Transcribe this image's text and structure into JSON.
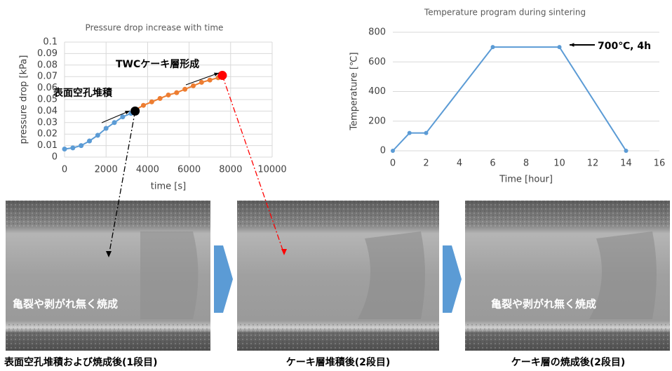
{
  "chart_data": [
    {
      "type": "line",
      "title": "Pressure drop increase with time",
      "x_label": "time [s]",
      "y_label": "pressure drop [kPa]",
      "xlim": [
        0,
        10000
      ],
      "xticks": [
        0,
        2000,
        4000,
        6000,
        8000,
        10000
      ],
      "ylim": [
        0,
        0.1
      ],
      "yticks": [
        0,
        0.01,
        0.02,
        0.03,
        0.04,
        0.05,
        0.06,
        0.07,
        0.08,
        0.09,
        0.1
      ],
      "grid": "both",
      "series": [
        {
          "color": "#5b9bd5",
          "x": [
            0,
            400,
            800,
            1200,
            1600,
            2000,
            2400,
            2800,
            3200,
            3400
          ],
          "values": [
            0.007,
            0.008,
            0.01,
            0.014,
            0.019,
            0.025,
            0.03,
            0.035,
            0.038,
            0.04
          ]
        },
        {
          "color": "#ed7d31",
          "x": [
            3400,
            3800,
            4200,
            4600,
            5000,
            5400,
            5800,
            6200,
            6600,
            7000,
            7400,
            7600
          ],
          "values": [
            0.041,
            0.045,
            0.048,
            0.051,
            0.054,
            0.056,
            0.059,
            0.062,
            0.065,
            0.067,
            0.069,
            0.07
          ]
        }
      ],
      "highlights": [
        {
          "color": "#000000",
          "x": 3400,
          "value": 0.04
        },
        {
          "color": "#ff0000",
          "x": 7600,
          "value": 0.071
        }
      ],
      "annotations": [
        "表面空孔堆積",
        "TWCケーキ層形成"
      ]
    },
    {
      "type": "line",
      "title": "Temperature program during sintering",
      "x_label": "Time [hour]",
      "y_label": "Temperature [℃]",
      "xlim": [
        0,
        16
      ],
      "xticks": [
        0,
        2,
        4,
        6,
        8,
        10,
        12,
        14,
        16
      ],
      "ylim": [
        0,
        800
      ],
      "yticks": [
        0,
        200,
        400,
        600,
        800
      ],
      "grid": "y",
      "series": [
        {
          "color": "#5b9bd5",
          "x": [
            0,
            1,
            2,
            6,
            10,
            14
          ],
          "values": [
            0,
            120,
            120,
            700,
            700,
            0
          ]
        }
      ],
      "annotations": [
        "700℃, 4h"
      ]
    }
  ],
  "images": [
    {
      "caption": "表面空孔堆積および焼成後(1段目)",
      "overlay": "亀裂や剥がれ無く焼成"
    },
    {
      "caption": "ケーキ層堆積後(2段目)"
    },
    {
      "caption": "ケーキ層の焼成後(2段目)",
      "overlay": "亀裂や剥がれ無く焼成"
    }
  ]
}
